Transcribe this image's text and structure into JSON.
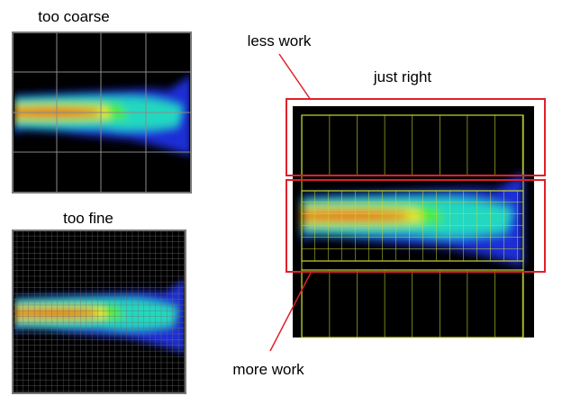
{
  "panels": [
    {
      "label": "too coarse"
    },
    {
      "label": "too fine"
    },
    {
      "label": "just right"
    }
  ],
  "annotations": [
    {
      "label": "less work"
    },
    {
      "label": "more work"
    }
  ]
}
